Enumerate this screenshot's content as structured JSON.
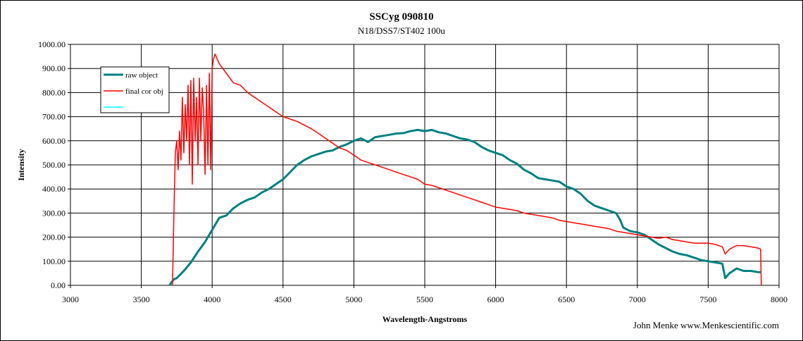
{
  "chart_data": {
    "type": "line",
    "title": "SSCyg 090810",
    "subtitle": "N18/DSS7/ST402  100u",
    "xlabel": "Wavelength-Angstroms",
    "ylabel": "Intensity",
    "xlim": [
      3000,
      8000
    ],
    "ylim": [
      0,
      1000
    ],
    "x_ticks": [
      "3000",
      "3500",
      "4000",
      "4500",
      "5000",
      "5500",
      "6000",
      "6500",
      "7000",
      "7500",
      "8000"
    ],
    "y_ticks": [
      "0.00",
      "100.00",
      "200.00",
      "300.00",
      "400.00",
      "500.00",
      "600.00",
      "700.00",
      "800.00",
      "900.00",
      "1000.00"
    ],
    "grid": true,
    "legend_position": "top-left",
    "credit": "John Menke www.Menkescientific.com",
    "series": [
      {
        "name": "raw object",
        "color": "#008080",
        "points": [
          [
            3700,
            0
          ],
          [
            3710,
            10
          ],
          [
            3730,
            25
          ],
          [
            3750,
            30
          ],
          [
            3800,
            60
          ],
          [
            3850,
            95
          ],
          [
            3900,
            140
          ],
          [
            3950,
            180
          ],
          [
            4000,
            230
          ],
          [
            4050,
            280
          ],
          [
            4100,
            290
          ],
          [
            4150,
            320
          ],
          [
            4200,
            340
          ],
          [
            4250,
            355
          ],
          [
            4300,
            365
          ],
          [
            4350,
            385
          ],
          [
            4400,
            400
          ],
          [
            4450,
            420
          ],
          [
            4500,
            440
          ],
          [
            4550,
            470
          ],
          [
            4600,
            500
          ],
          [
            4650,
            520
          ],
          [
            4700,
            535
          ],
          [
            4750,
            545
          ],
          [
            4800,
            555
          ],
          [
            4850,
            560
          ],
          [
            4900,
            575
          ],
          [
            4950,
            585
          ],
          [
            5000,
            600
          ],
          [
            5050,
            610
          ],
          [
            5100,
            595
          ],
          [
            5150,
            615
          ],
          [
            5200,
            620
          ],
          [
            5250,
            625
          ],
          [
            5300,
            630
          ],
          [
            5350,
            632
          ],
          [
            5400,
            640
          ],
          [
            5450,
            645
          ],
          [
            5500,
            640
          ],
          [
            5550,
            645
          ],
          [
            5600,
            635
          ],
          [
            5650,
            630
          ],
          [
            5700,
            620
          ],
          [
            5750,
            610
          ],
          [
            5800,
            605
          ],
          [
            5850,
            595
          ],
          [
            5900,
            575
          ],
          [
            5950,
            560
          ],
          [
            6000,
            550
          ],
          [
            6050,
            540
          ],
          [
            6100,
            520
          ],
          [
            6150,
            505
          ],
          [
            6200,
            480
          ],
          [
            6250,
            465
          ],
          [
            6300,
            445
          ],
          [
            6350,
            440
          ],
          [
            6400,
            435
          ],
          [
            6450,
            430
          ],
          [
            6500,
            410
          ],
          [
            6550,
            400
          ],
          [
            6600,
            380
          ],
          [
            6650,
            350
          ],
          [
            6700,
            330
          ],
          [
            6750,
            320
          ],
          [
            6800,
            310
          ],
          [
            6850,
            300
          ],
          [
            6880,
            270
          ],
          [
            6900,
            240
          ],
          [
            6950,
            225
          ],
          [
            7000,
            220
          ],
          [
            7050,
            210
          ],
          [
            7100,
            190
          ],
          [
            7150,
            170
          ],
          [
            7200,
            155
          ],
          [
            7250,
            140
          ],
          [
            7300,
            130
          ],
          [
            7350,
            125
          ],
          [
            7400,
            115
          ],
          [
            7450,
            105
          ],
          [
            7500,
            100
          ],
          [
            7550,
            95
          ],
          [
            7600,
            90
          ],
          [
            7620,
            30
          ],
          [
            7650,
            50
          ],
          [
            7700,
            70
          ],
          [
            7750,
            60
          ],
          [
            7800,
            60
          ],
          [
            7850,
            55
          ],
          [
            7870,
            55
          ]
        ]
      },
      {
        "name": "final cor obj",
        "color": "#ff0000",
        "points": [
          [
            3720,
            0
          ],
          [
            3730,
            300
          ],
          [
            3740,
            550
          ],
          [
            3750,
            600
          ],
          [
            3760,
            480
          ],
          [
            3770,
            640
          ],
          [
            3780,
            520
          ],
          [
            3790,
            780
          ],
          [
            3800,
            550
          ],
          [
            3810,
            750
          ],
          [
            3820,
            600
          ],
          [
            3830,
            830
          ],
          [
            3840,
            500
          ],
          [
            3850,
            850
          ],
          [
            3860,
            420
          ],
          [
            3870,
            860
          ],
          [
            3880,
            600
          ],
          [
            3890,
            780
          ],
          [
            3900,
            500
          ],
          [
            3910,
            860
          ],
          [
            3920,
            600
          ],
          [
            3930,
            820
          ],
          [
            3940,
            720
          ],
          [
            3950,
            460
          ],
          [
            3960,
            830
          ],
          [
            3970,
            500
          ],
          [
            3980,
            880
          ],
          [
            3990,
            480
          ],
          [
            4000,
            900
          ],
          [
            4010,
            940
          ],
          [
            4020,
            960
          ],
          [
            4050,
            920
          ],
          [
            4100,
            880
          ],
          [
            4150,
            840
          ],
          [
            4200,
            830
          ],
          [
            4250,
            800
          ],
          [
            4300,
            780
          ],
          [
            4350,
            760
          ],
          [
            4400,
            740
          ],
          [
            4450,
            720
          ],
          [
            4500,
            700
          ],
          [
            4550,
            690
          ],
          [
            4600,
            680
          ],
          [
            4650,
            665
          ],
          [
            4700,
            650
          ],
          [
            4750,
            630
          ],
          [
            4800,
            610
          ],
          [
            4850,
            590
          ],
          [
            4900,
            570
          ],
          [
            4950,
            560
          ],
          [
            5000,
            540
          ],
          [
            5050,
            520
          ],
          [
            5100,
            510
          ],
          [
            5150,
            500
          ],
          [
            5200,
            490
          ],
          [
            5250,
            480
          ],
          [
            5300,
            470
          ],
          [
            5350,
            460
          ],
          [
            5400,
            450
          ],
          [
            5450,
            440
          ],
          [
            5500,
            420
          ],
          [
            5550,
            415
          ],
          [
            5600,
            405
          ],
          [
            5650,
            395
          ],
          [
            5700,
            385
          ],
          [
            5750,
            375
          ],
          [
            5800,
            365
          ],
          [
            5850,
            355
          ],
          [
            5900,
            345
          ],
          [
            5950,
            335
          ],
          [
            6000,
            325
          ],
          [
            6050,
            320
          ],
          [
            6100,
            315
          ],
          [
            6150,
            310
          ],
          [
            6200,
            300
          ],
          [
            6250,
            295
          ],
          [
            6300,
            290
          ],
          [
            6350,
            285
          ],
          [
            6400,
            280
          ],
          [
            6450,
            270
          ],
          [
            6500,
            265
          ],
          [
            6550,
            260
          ],
          [
            6600,
            255
          ],
          [
            6650,
            250
          ],
          [
            6700,
            245
          ],
          [
            6750,
            240
          ],
          [
            6800,
            235
          ],
          [
            6850,
            225
          ],
          [
            6900,
            220
          ],
          [
            6950,
            215
          ],
          [
            7000,
            210
          ],
          [
            7050,
            205
          ],
          [
            7100,
            200
          ],
          [
            7150,
            195
          ],
          [
            7200,
            200
          ],
          [
            7250,
            190
          ],
          [
            7300,
            185
          ],
          [
            7350,
            180
          ],
          [
            7400,
            175
          ],
          [
            7450,
            175
          ],
          [
            7500,
            175
          ],
          [
            7550,
            170
          ],
          [
            7600,
            160
          ],
          [
            7620,
            130
          ],
          [
            7650,
            150
          ],
          [
            7700,
            165
          ],
          [
            7750,
            165
          ],
          [
            7800,
            160
          ],
          [
            7850,
            155
          ],
          [
            7870,
            150
          ],
          [
            7875,
            0
          ]
        ]
      },
      {
        "name": "",
        "color": "#00ffff",
        "points": []
      }
    ]
  }
}
